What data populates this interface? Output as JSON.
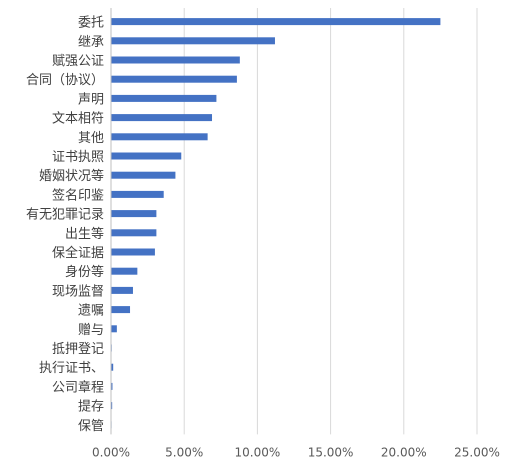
{
  "chart_data": {
    "type": "bar",
    "orientation": "horizontal",
    "title": "",
    "xlabel": "",
    "ylabel": "",
    "xlim": [
      0,
      0.25
    ],
    "grid": "vertical",
    "legend": "none",
    "bar_color": "#4472C4",
    "tick_values": [
      0,
      0.05,
      0.1,
      0.15,
      0.2,
      0.25
    ],
    "tick_labels": [
      "0.00%",
      "5.00%",
      "10.00%",
      "15.00%",
      "20.00%",
      "25.00%"
    ],
    "categories": [
      "委托",
      "继承",
      "赋强公证",
      "合同（协议）",
      "声明",
      "文本相符",
      "其他",
      "证书执照",
      "婚姻状况等",
      "签名印鉴",
      "有无犯罪记录",
      "出生等",
      "保全证据",
      "身份等",
      "现场监督",
      "遗嘱",
      "赠与",
      "抵押登记",
      "执行证书、",
      "公司章程",
      "提存",
      "保管"
    ],
    "values": [
      0.225,
      0.112,
      0.088,
      0.086,
      0.072,
      0.069,
      0.066,
      0.048,
      0.044,
      0.036,
      0.031,
      0.031,
      0.03,
      0.018,
      0.015,
      0.013,
      0.004,
      0.0005,
      0.0015,
      0.001,
      0.0008,
      0.0004
    ]
  }
}
